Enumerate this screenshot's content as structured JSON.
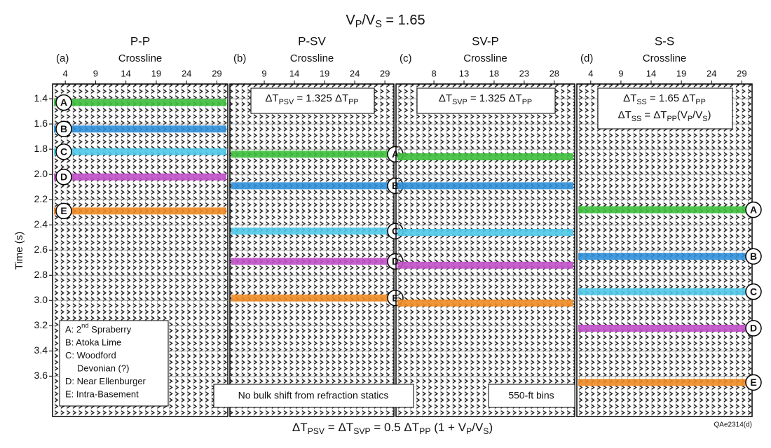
{
  "title": [
    {
      "text": "V"
    },
    {
      "text": "P",
      "sub": true
    },
    {
      "text": "/V"
    },
    {
      "text": "S",
      "sub": true
    },
    {
      "text": " = 1.65"
    }
  ],
  "y_axis": {
    "title": "Time (s)",
    "ylim": [
      1.283,
      3.92
    ],
    "yticks": [
      1.4,
      1.6,
      1.8,
      {
        "value": 2,
        "label": "2.0"
      },
      2.2,
      2.4,
      2.6,
      2.8,
      {
        "value": 3,
        "label": "3.0"
      },
      3.2,
      3.4,
      3.6
    ]
  },
  "panels": [
    {
      "label": "(a)",
      "title": "P-P",
      "axis_title": "Crossline",
      "xlim": [
        1.9,
        30.8
      ],
      "xticks": [
        4,
        9,
        14,
        19,
        24,
        29
      ],
      "label_side": "left",
      "horizons": [
        {
          "label": "A",
          "time": 1.43,
          "color": "#3cbf3c"
        },
        {
          "label": "B",
          "time": 1.64,
          "color": "#2f8fd8"
        },
        {
          "label": "C",
          "time": 1.82,
          "color": "#4fc8e8"
        },
        {
          "label": "D",
          "time": 2.02,
          "color": "#c04fc8"
        },
        {
          "label": "E",
          "time": 2.29,
          "color": "#f08a24"
        }
      ]
    },
    {
      "label": "(b)",
      "title": "P-SV",
      "axis_title": "Crossline",
      "xlim": [
        3.3,
        30.5
      ],
      "xticks": [
        9,
        14,
        19,
        24,
        29
      ],
      "label_side": "right",
      "equation": [
        [
          {
            "text": "ΔT"
          },
          {
            "text": "PSV",
            "sub": true
          },
          {
            "text": " = 1.325 ΔT"
          },
          {
            "text": "PP",
            "sub": true
          }
        ]
      ],
      "horizons": [
        {
          "label": "A",
          "time": 1.84,
          "color": "#3cbf3c"
        },
        {
          "label": "B",
          "time": 2.09,
          "color": "#2f8fd8"
        },
        {
          "label": "C",
          "time": 2.45,
          "color": "#4fc8e8"
        },
        {
          "label": "D",
          "time": 2.69,
          "color": "#c04fc8"
        },
        {
          "label": "E",
          "time": 2.98,
          "color": "#f08a24"
        }
      ]
    },
    {
      "label": "(c)",
      "title": "SV-P",
      "axis_title": "Crossline",
      "xlim": [
        1.7,
        31.4
      ],
      "xticks": [
        8,
        13,
        18,
        23,
        28
      ],
      "label_side": "none",
      "equation": [
        [
          {
            "text": "ΔT"
          },
          {
            "text": "SVP",
            "sub": true
          },
          {
            "text": " = 1.325 ΔT"
          },
          {
            "text": "PP",
            "sub": true
          }
        ]
      ],
      "horizons": [
        {
          "time": 1.86,
          "color": "#3cbf3c"
        },
        {
          "time": 2.09,
          "color": "#2f8fd8"
        },
        {
          "time": 2.46,
          "color": "#4fc8e8"
        },
        {
          "time": 2.72,
          "color": "#c04fc8"
        },
        {
          "time": 3.02,
          "color": "#f08a24"
        }
      ]
    },
    {
      "label": "(d)",
      "title": "S-S",
      "axis_title": "Crossline",
      "xlim": [
        1.7,
        30.7
      ],
      "xticks": [
        4,
        9,
        14,
        19,
        24,
        29
      ],
      "label_side": "right",
      "equation": [
        [
          {
            "text": "ΔT"
          },
          {
            "text": "SS",
            "sub": true
          },
          {
            "text": " = 1.65 ΔT"
          },
          {
            "text": "PP",
            "sub": true
          }
        ],
        [
          {
            "text": "ΔT"
          },
          {
            "text": "SS",
            "sub": true
          },
          {
            "text": " = ΔT"
          },
          {
            "text": "PP",
            "sub": true
          },
          {
            "text": "(V"
          },
          {
            "text": "P",
            "sub": true
          },
          {
            "text": "/V"
          },
          {
            "text": "S",
            "sub": true
          },
          {
            "text": ")"
          }
        ]
      ],
      "horizons": [
        {
          "label": "A",
          "time": 2.28,
          "color": "#3cbf3c"
        },
        {
          "label": "B",
          "time": 2.65,
          "color": "#2f8fd8"
        },
        {
          "label": "C",
          "time": 2.93,
          "color": "#4fc8e8"
        },
        {
          "label": "D",
          "time": 3.22,
          "color": "#c04fc8"
        },
        {
          "label": "E",
          "time": 3.65,
          "color": "#f08a24"
        }
      ]
    }
  ],
  "legend": [
    {
      "parts": [
        {
          "text": "A: 2"
        },
        {
          "text": "nd",
          "sup": true
        },
        {
          "text": " Spraberry"
        }
      ]
    },
    {
      "parts": [
        {
          "text": "B: Atoka Lime"
        }
      ]
    },
    {
      "parts": [
        {
          "text": "C: Woodford"
        }
      ]
    },
    {
      "parts": [
        {
          "text": "Devonian (?)"
        }
      ],
      "indent": true
    },
    {
      "parts": [
        {
          "text": "D: Near Ellenburger"
        }
      ]
    },
    {
      "parts": [
        {
          "text": "E: Intra-Basement"
        }
      ]
    }
  ],
  "notes": [
    "No bulk shift from refraction statics",
    "550-ft bins"
  ],
  "bottom_equation": [
    {
      "text": "ΔT"
    },
    {
      "text": "PSV",
      "sub": true
    },
    {
      "text": " = ΔT"
    },
    {
      "text": "SVP",
      "sub": true
    },
    {
      "text": " = 0.5 ΔT"
    },
    {
      "text": "PP",
      "sub": true
    },
    {
      "text": " (1 + V"
    },
    {
      "text": "P",
      "sub": true
    },
    {
      "text": "/V"
    },
    {
      "text": "S",
      "sub": true
    },
    {
      "text": ")"
    }
  ],
  "figure_id": "QAe2314(d)"
}
